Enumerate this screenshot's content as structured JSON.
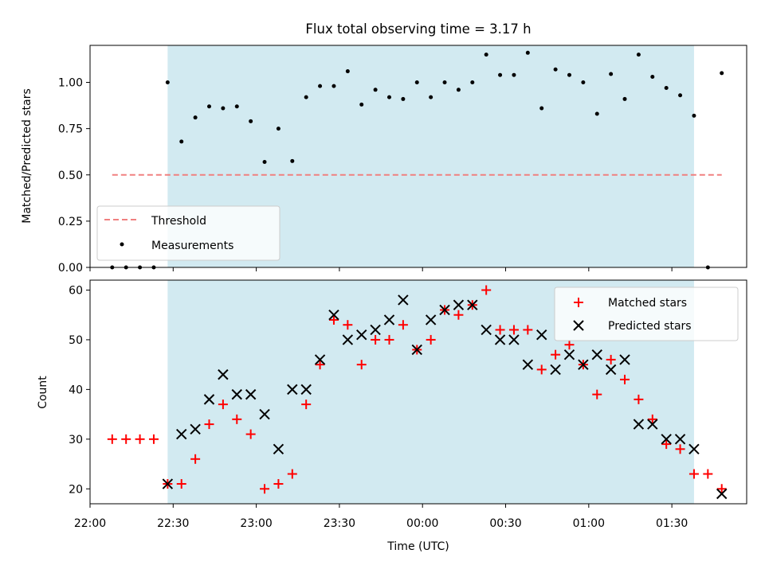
{
  "figure": {
    "title": "Flux total observing time = 3.17 h",
    "colors": {
      "shade": "#add8e6",
      "threshold": "#f08080",
      "measurement": "#000000",
      "matched": "#ff0000",
      "predicted": "#000000"
    }
  },
  "chart_data": [
    {
      "type": "scatter",
      "title": "Flux total observing time = 3.17 h",
      "ylabel": "Matched/Predicted stars",
      "xlabel": "",
      "xlim": [
        "22:00",
        "01:57"
      ],
      "ylim": [
        0,
        1.2
      ],
      "yticks": [
        0.0,
        0.25,
        0.5,
        0.75,
        1.0
      ],
      "ytick_labels": [
        "0.00",
        "0.25",
        "0.50",
        "0.75",
        "1.00"
      ],
      "shaded_span": [
        "22:28",
        "01:38"
      ],
      "legend": {
        "placement": "lower-left",
        "entries": [
          "Threshold",
          "Measurements"
        ]
      },
      "threshold": {
        "name": "Threshold",
        "value": 0.5,
        "x_range": [
          "22:08",
          "01:48"
        ],
        "style": "dashed"
      },
      "series": [
        {
          "name": "Measurements",
          "x": [
            "22:08",
            "22:13",
            "22:18",
            "22:23",
            "22:28",
            "22:33",
            "22:38",
            "22:43",
            "22:48",
            "22:53",
            "22:58",
            "23:03",
            "23:08",
            "23:13",
            "23:18",
            "23:23",
            "23:28",
            "23:33",
            "23:38",
            "23:43",
            "23:48",
            "23:53",
            "23:58",
            "00:03",
            "00:08",
            "00:13",
            "00:18",
            "00:23",
            "00:28",
            "00:33",
            "00:38",
            "00:43",
            "00:48",
            "00:53",
            "00:58",
            "01:03",
            "01:08",
            "01:13",
            "01:18",
            "01:23",
            "01:28",
            "01:33",
            "01:38",
            "01:43",
            "01:48"
          ],
          "y": [
            0.0,
            0.0,
            0.0,
            0.0,
            1.0,
            0.68,
            0.81,
            0.87,
            0.86,
            0.87,
            0.79,
            0.57,
            0.75,
            0.575,
            0.92,
            0.98,
            0.98,
            1.06,
            0.88,
            0.96,
            0.92,
            0.91,
            1.0,
            0.92,
            1.0,
            0.96,
            1.0,
            1.15,
            1.04,
            1.04,
            1.16,
            0.86,
            1.07,
            1.04,
            1.0,
            0.83,
            1.045,
            0.91,
            1.15,
            1.03,
            0.97,
            0.93,
            0.82,
            0.0,
            1.05
          ]
        }
      ]
    },
    {
      "type": "scatter",
      "xlabel": "Time (UTC)",
      "ylabel": "Count",
      "xlim": [
        "22:00",
        "01:57"
      ],
      "ylim": [
        17,
        62
      ],
      "xticks": [
        "22:00",
        "22:30",
        "23:00",
        "23:30",
        "00:00",
        "00:30",
        "01:00",
        "01:30"
      ],
      "yticks": [
        20,
        30,
        40,
        50,
        60
      ],
      "shaded_span": [
        "22:28",
        "01:38"
      ],
      "legend": {
        "placement": "upper-right",
        "entries": [
          "Matched stars",
          "Predicted stars"
        ]
      },
      "series": [
        {
          "name": "Matched stars",
          "marker": "plus",
          "x": [
            "22:08",
            "22:13",
            "22:18",
            "22:23",
            "22:28",
            "22:33",
            "22:38",
            "22:43",
            "22:48",
            "22:53",
            "22:58",
            "23:03",
            "23:08",
            "23:13",
            "23:18",
            "23:23",
            "23:28",
            "23:33",
            "23:38",
            "23:43",
            "23:48",
            "23:53",
            "23:58",
            "00:03",
            "00:08",
            "00:13",
            "00:18",
            "00:23",
            "00:28",
            "00:33",
            "00:38",
            "00:43",
            "00:48",
            "00:53",
            "00:58",
            "01:03",
            "01:08",
            "01:13",
            "01:18",
            "01:23",
            "01:28",
            "01:33",
            "01:38",
            "01:43",
            "01:48"
          ],
          "y": [
            30,
            30,
            30,
            30,
            21,
            21,
            26,
            33,
            37,
            34,
            31,
            20,
            21,
            23,
            37,
            45,
            54,
            53,
            45,
            50,
            50,
            53,
            48,
            50,
            56,
            55,
            57,
            60,
            52,
            52,
            52,
            44,
            47,
            49,
            45,
            39,
            46,
            42,
            38,
            34,
            29,
            28,
            23,
            23,
            20
          ]
        },
        {
          "name": "Predicted stars",
          "marker": "x",
          "x": [
            "22:28",
            "22:33",
            "22:38",
            "22:43",
            "22:48",
            "22:53",
            "22:58",
            "23:03",
            "23:08",
            "23:13",
            "23:18",
            "23:23",
            "23:28",
            "23:33",
            "23:38",
            "23:43",
            "23:48",
            "23:53",
            "23:58",
            "00:03",
            "00:08",
            "00:13",
            "00:18",
            "00:23",
            "00:28",
            "00:33",
            "00:38",
            "00:43",
            "00:48",
            "00:53",
            "00:58",
            "01:03",
            "01:08",
            "01:13",
            "01:18",
            "01:23",
            "01:28",
            "01:33",
            "01:38",
            "01:48"
          ],
          "y": [
            21,
            31,
            32,
            38,
            43,
            39,
            39,
            35,
            28,
            40,
            40,
            46,
            55,
            50,
            51,
            52,
            54,
            58,
            48,
            54,
            56,
            57,
            57,
            52,
            50,
            50,
            45,
            51,
            44,
            47,
            45,
            47,
            44,
            46,
            33,
            33,
            30,
            30,
            28,
            19
          ]
        }
      ]
    }
  ]
}
